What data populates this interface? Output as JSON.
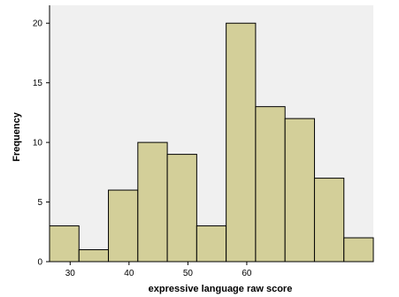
{
  "chart_data": {
    "type": "bar",
    "title": "",
    "xlabel": "expressive language raw score",
    "ylabel": "Frequency",
    "bins": [
      {
        "start": 26.5,
        "end": 31.5,
        "value": 3
      },
      {
        "start": 31.5,
        "end": 36.5,
        "value": 1
      },
      {
        "start": 36.5,
        "end": 41.5,
        "value": 6
      },
      {
        "start": 41.5,
        "end": 46.5,
        "value": 10
      },
      {
        "start": 46.5,
        "end": 51.5,
        "value": 9
      },
      {
        "start": 51.5,
        "end": 56.5,
        "value": 3
      },
      {
        "start": 56.5,
        "end": 61.5,
        "value": 20
      },
      {
        "start": 61.5,
        "end": 66.5,
        "value": 13
      },
      {
        "start": 66.5,
        "end": 71.5,
        "value": 12
      },
      {
        "start": 71.5,
        "end": 76.5,
        "value": 7
      },
      {
        "start": 76.5,
        "end": 81.5,
        "value": 2
      }
    ],
    "xlim": [
      26.5,
      81.5
    ],
    "ylim": [
      0,
      21.5
    ],
    "xticks": [
      30,
      40,
      50,
      60
    ],
    "yticks": [
      0,
      5,
      10,
      15,
      20
    ],
    "grid": false,
    "colors": {
      "bar_fill": "#d3cf99",
      "bar_stroke": "#000000",
      "plot_background": "#f0f0f0"
    }
  }
}
